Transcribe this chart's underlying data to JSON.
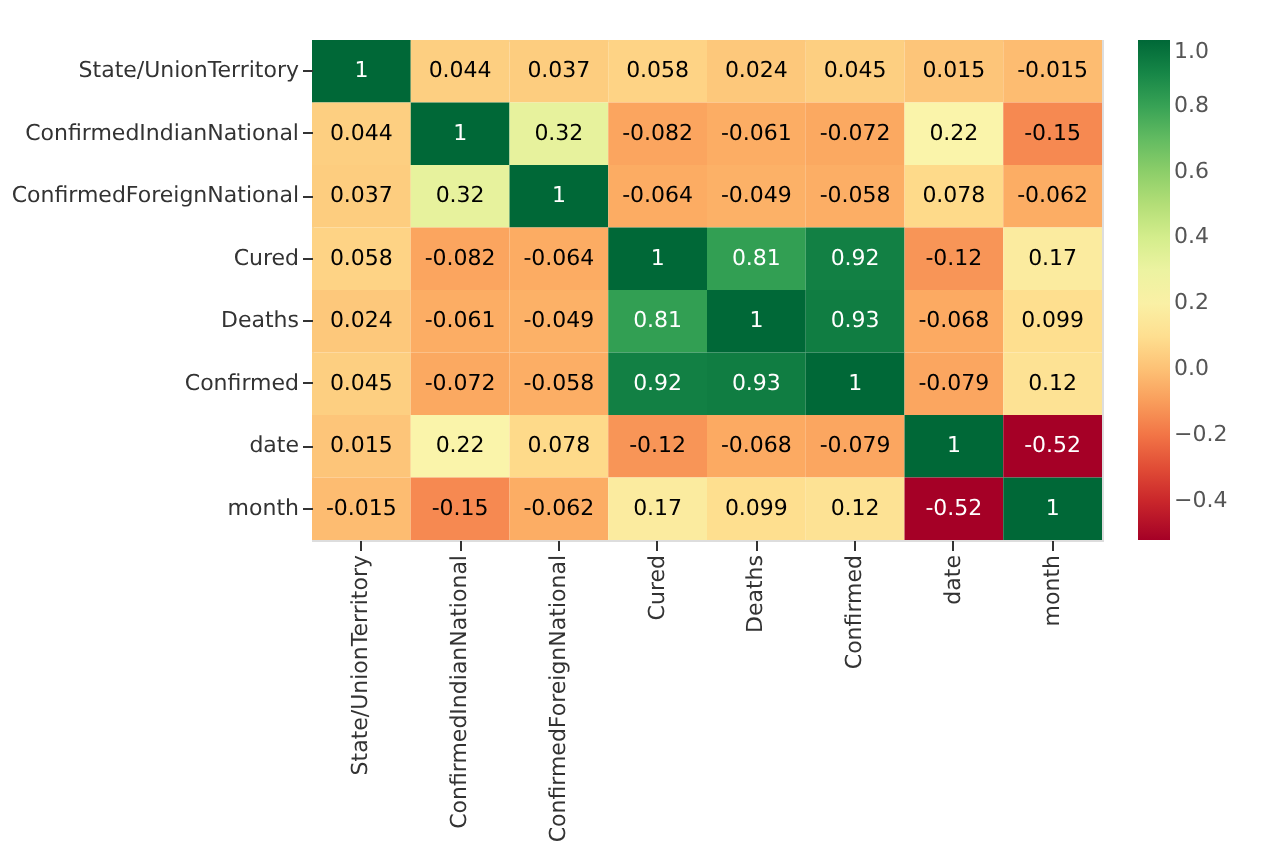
{
  "chart_data": {
    "type": "heatmap",
    "categories": [
      "State/UnionTerritory",
      "ConfirmedIndianNational",
      "ConfirmedForeignNational",
      "Cured",
      "Deaths",
      "Confirmed",
      "date",
      "month"
    ],
    "y_categories": [
      "State/UnionTerritory",
      "ConfirmedIndianNational",
      "ConfirmedForeignNational",
      "Cured",
      "Deaths",
      "Confirmed",
      "date",
      "month"
    ],
    "cells": [
      [
        1,
        0.044,
        0.037,
        0.058,
        0.024,
        0.045,
        0.015,
        -0.015
      ],
      [
        0.044,
        1,
        0.32,
        -0.082,
        -0.061,
        -0.072,
        0.22,
        -0.15
      ],
      [
        0.037,
        0.32,
        1,
        -0.064,
        -0.049,
        -0.058,
        0.078,
        -0.062
      ],
      [
        0.058,
        -0.082,
        -0.064,
        1,
        0.81,
        0.92,
        -0.12,
        0.17
      ],
      [
        0.024,
        -0.061,
        -0.049,
        0.81,
        1,
        0.93,
        -0.068,
        0.099
      ],
      [
        0.045,
        -0.072,
        -0.058,
        0.92,
        0.93,
        1,
        -0.079,
        0.12
      ],
      [
        0.015,
        0.22,
        0.078,
        -0.12,
        -0.068,
        -0.079,
        1,
        -0.52
      ],
      [
        -0.015,
        -0.15,
        -0.062,
        0.17,
        0.099,
        0.12,
        -0.52,
        1
      ]
    ],
    "clim": [
      -0.52,
      1
    ],
    "cticks": [
      {
        "value": -0.4,
        "label": "−0.4"
      },
      {
        "value": -0.2,
        "label": "−0.2"
      },
      {
        "value": 0,
        "label": "0.0"
      },
      {
        "value": 0.2,
        "label": "0.2"
      },
      {
        "value": 0.4,
        "label": "0.4"
      },
      {
        "value": 0.6,
        "label": "0.6"
      },
      {
        "value": 0.8,
        "label": "0.8"
      },
      {
        "value": 1,
        "label": "1.0"
      }
    ],
    "data_labels": true
  }
}
